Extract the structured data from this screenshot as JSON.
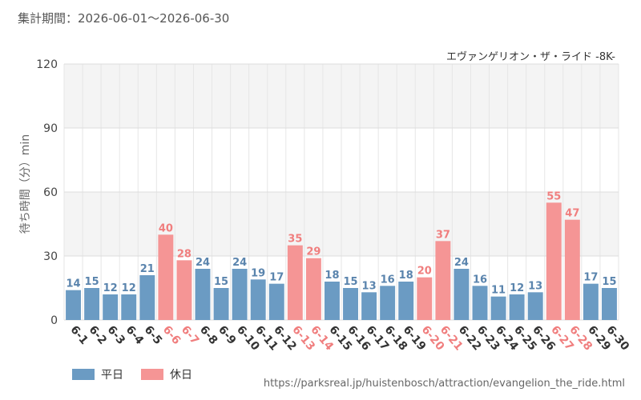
{
  "header": {
    "period_label": "集計期間：2026-06-01～2026-06-30"
  },
  "source_url": "https://parksreal.jp/huistenbosch/attraction/evangelion_the_ride.html",
  "colors": {
    "weekday": "#6b9bc3",
    "holiday": "#f59595",
    "weekday_text": "#5a84ad",
    "holiday_text": "#f07e7e",
    "band": "#f4f4f4",
    "grid": "#dddddd"
  },
  "chart_data": {
    "type": "bar",
    "subtitle": "エヴァンゲリオン・ザ・ライド -8K-",
    "ylabel": "待ち時間（分）min",
    "xlabel": "",
    "ylim": [
      0,
      120
    ],
    "yticks": [
      0,
      30,
      60,
      90,
      120
    ],
    "grid": true,
    "legend_position": "bottom-left",
    "categories": [
      "6-1",
      "6-2",
      "6-3",
      "6-4",
      "6-5",
      "6-6",
      "6-7",
      "6-8",
      "6-9",
      "6-10",
      "6-11",
      "6-12",
      "6-13",
      "6-14",
      "6-15",
      "6-16",
      "6-17",
      "6-18",
      "6-19",
      "6-20",
      "6-21",
      "6-22",
      "6-23",
      "6-24",
      "6-25",
      "6-26",
      "6-27",
      "6-28",
      "6-29",
      "6-30"
    ],
    "values": [
      14,
      15,
      12,
      12,
      21,
      40,
      28,
      24,
      15,
      24,
      19,
      17,
      35,
      29,
      18,
      15,
      13,
      16,
      18,
      20,
      37,
      24,
      16,
      11,
      12,
      13,
      55,
      47,
      17,
      15
    ],
    "day_type": [
      "weekday",
      "weekday",
      "weekday",
      "weekday",
      "weekday",
      "holiday",
      "holiday",
      "weekday",
      "weekday",
      "weekday",
      "weekday",
      "weekday",
      "holiday",
      "holiday",
      "weekday",
      "weekday",
      "weekday",
      "weekday",
      "weekday",
      "holiday",
      "holiday",
      "weekday",
      "weekday",
      "weekday",
      "weekday",
      "weekday",
      "holiday",
      "holiday",
      "weekday",
      "weekday"
    ],
    "legend": [
      {
        "key": "weekday",
        "label": "平日"
      },
      {
        "key": "holiday",
        "label": "休日"
      }
    ]
  }
}
